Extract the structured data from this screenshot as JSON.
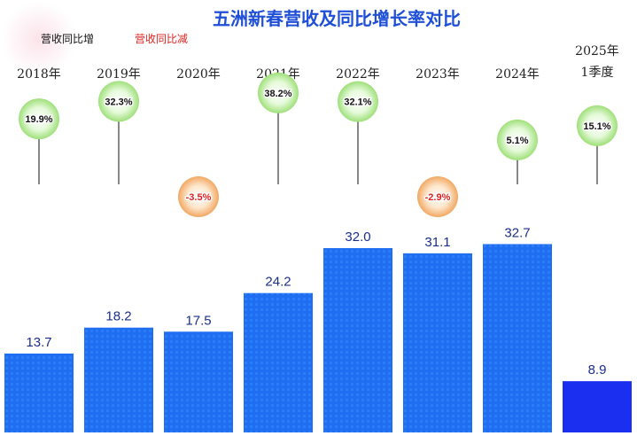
{
  "colors": {
    "title": "#1f4fd6",
    "bar": "#1f6ef2",
    "bar_last": "#1a2ff0",
    "growth_text": "#111111",
    "decline_text": "#e02020",
    "growth_bubble": "#c9f2b0",
    "decline_bubble": "#f6c38c",
    "pin": "#888888"
  },
  "chart_data": {
    "type": "bar",
    "title": "五洲新春营收及同比增长率对比",
    "legend": [
      "营收同比增",
      "营收同比减"
    ],
    "legend_placement": "top-left",
    "categories": [
      "2018年",
      "2019年",
      "2020年",
      "2021年",
      "2022年",
      "2023年",
      "2024年",
      "2025年\n1季度"
    ],
    "series": [
      {
        "values": [
          13.7,
          18.2,
          17.5,
          24.2,
          32.0,
          31.1,
          32.7,
          8.9
        ],
        "value_labels": [
          "13.7",
          "18.2",
          "17.5",
          "24.2",
          "32.0",
          "31.1",
          "32.7",
          "8.9"
        ]
      },
      {
        "type": "bubble",
        "values": [
          19.9,
          32.3,
          -3.5,
          38.2,
          32.1,
          -2.9,
          5.1,
          15.1
        ],
        "value_labels": [
          "19.9%",
          "32.3%",
          "-3.5%",
          "38.2%",
          "32.1%",
          "-2.9%",
          "5.1%",
          "15.1%"
        ]
      }
    ],
    "ylim": [
      0,
      37
    ],
    "grid": false
  }
}
